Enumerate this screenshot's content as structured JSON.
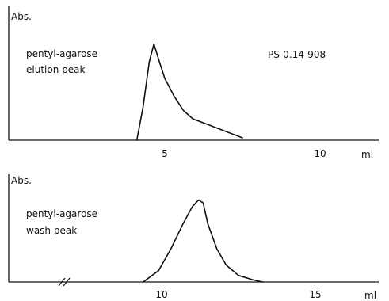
{
  "chart_data": [
    {
      "type": "line",
      "ylabel": "Abs.",
      "annotation_lines": [
        "pentyl-agarose",
        "elution peak"
      ],
      "sample_label": "PS-0.14-908",
      "x_unit": "ml",
      "ticks": [
        5,
        10
      ],
      "xlim": [
        0,
        12
      ],
      "ylim": [
        0,
        1
      ],
      "x": [
        4.1,
        4.3,
        4.5,
        4.65,
        4.8,
        5.0,
        5.3,
        5.6,
        5.9,
        6.3,
        6.8,
        7.2,
        7.5
      ],
      "y": [
        0.0,
        0.28,
        0.66,
        0.81,
        0.68,
        0.52,
        0.37,
        0.25,
        0.18,
        0.14,
        0.09,
        0.05,
        0.02
      ]
    },
    {
      "type": "line",
      "ylabel": "Abs.",
      "annotation_lines": [
        "pentyl-agarose",
        "wash peak"
      ],
      "x_unit": "ml",
      "ticks": [
        10,
        15
      ],
      "axis_break": true,
      "xlim": [
        5,
        17.5
      ],
      "ylim": [
        0,
        1
      ],
      "x": [
        9.4,
        9.9,
        10.3,
        10.7,
        11.0,
        11.2,
        11.35,
        11.5,
        11.8,
        12.1,
        12.5,
        13.0,
        13.3
      ],
      "y": [
        0.0,
        0.12,
        0.35,
        0.62,
        0.8,
        0.87,
        0.84,
        0.62,
        0.35,
        0.18,
        0.07,
        0.02,
        0.0
      ]
    }
  ]
}
